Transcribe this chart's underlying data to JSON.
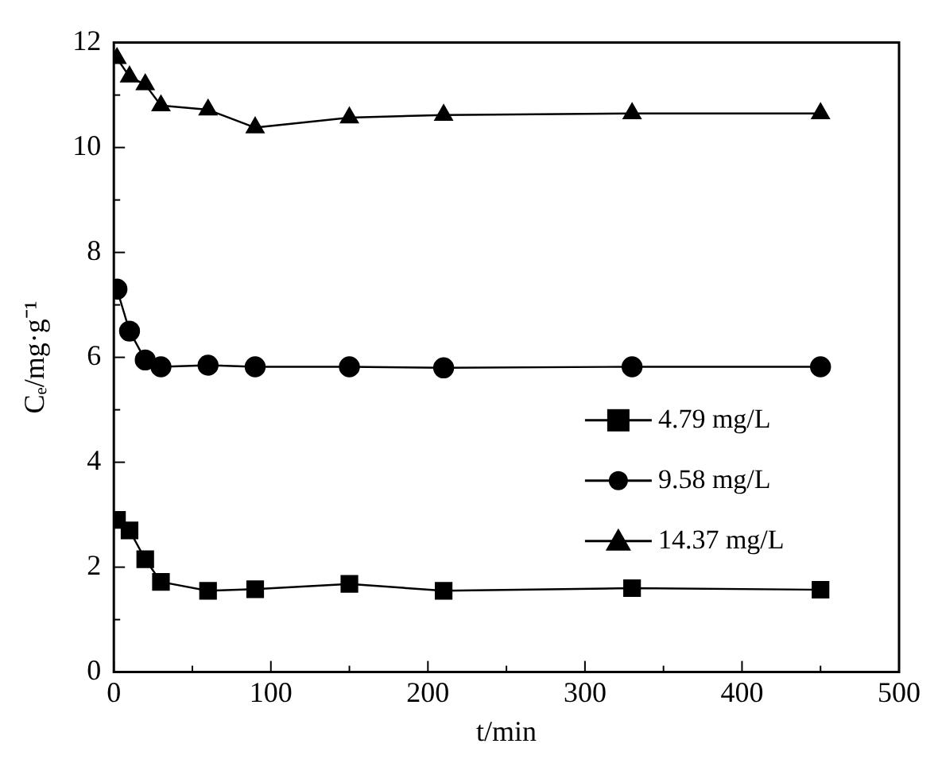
{
  "chart_data": {
    "type": "line",
    "xlabel": "t/min",
    "ylabel": "Cₑ/mg·g⁻¹",
    "x": [
      2,
      10,
      20,
      30,
      60,
      90,
      150,
      210,
      330,
      450
    ],
    "series": [
      {
        "name": "4.79 mg/L",
        "color": "#000000",
        "marker": "square",
        "values": [
          2.9,
          2.7,
          2.15,
          1.72,
          1.55,
          1.58,
          1.68,
          1.55,
          1.6,
          1.57
        ]
      },
      {
        "name": "9.58 mg/L",
        "color": "#000000",
        "marker": "circle",
        "values": [
          7.3,
          6.5,
          5.95,
          5.82,
          5.85,
          5.82,
          5.82,
          5.8,
          5.82,
          5.82
        ]
      },
      {
        "name": "14.37 mg/L",
        "color": "#000000",
        "marker": "triangle",
        "values": [
          11.7,
          11.35,
          11.2,
          10.8,
          10.72,
          10.38,
          10.57,
          10.62,
          10.65,
          10.65
        ]
      }
    ],
    "xlim": [
      0,
      500
    ],
    "ylim": [
      0,
      12
    ],
    "xticks": [
      0,
      {
        "value": 50,
        "label": null
      },
      100,
      {
        "value": 150,
        "label": null
      },
      200,
      {
        "value": 250,
        "label": null
      },
      300,
      {
        "value": 350,
        "label": null
      },
      400,
      {
        "value": 450,
        "label": null
      },
      500
    ],
    "yticks": [
      0,
      {
        "value": 1,
        "label": null
      },
      2,
      {
        "value": 3,
        "label": null
      },
      4,
      {
        "value": 5,
        "label": null
      },
      6,
      {
        "value": 7,
        "label": null
      },
      8,
      {
        "value": 9,
        "label": null
      },
      10,
      {
        "value": 11,
        "label": null
      },
      12
    ],
    "grid": false,
    "legend": "right",
    "line_style": "solid"
  }
}
